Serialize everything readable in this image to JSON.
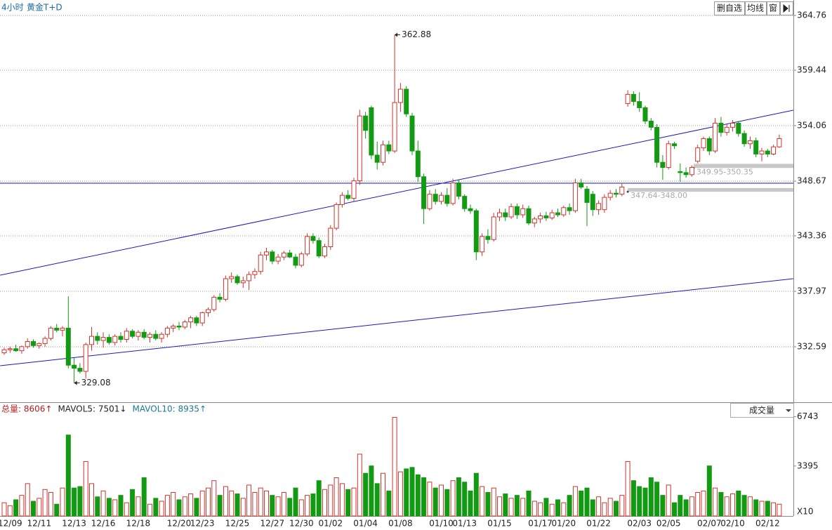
{
  "header": {
    "period": "4小时",
    "symbol": "黄金T+D",
    "buttons": [
      "删自选",
      "均线",
      "窗"
    ]
  },
  "chart_data": [
    {
      "type": "candlestick",
      "categories": [
        null,
        "12/09",
        null,
        null,
        null,
        null,
        "12/11",
        null,
        null,
        null,
        null,
        null,
        "12/13",
        null,
        null,
        null,
        null,
        "12/16",
        null,
        null,
        null,
        null,
        null,
        "12/18",
        null,
        null,
        null,
        null,
        null,
        null,
        "12/20",
        null,
        null,
        null,
        "12/23",
        null,
        null,
        null,
        null,
        null,
        "12/25",
        null,
        null,
        null,
        null,
        null,
        "12/27",
        null,
        null,
        null,
        null,
        "12/30",
        null,
        null,
        null,
        null,
        "01/02",
        null,
        null,
        null,
        null,
        null,
        "01/04",
        null,
        null,
        null,
        null,
        null,
        "01/08",
        null,
        null,
        null,
        null,
        null,
        null,
        "01/10",
        null,
        null,
        null,
        "01/13",
        null,
        null,
        null,
        null,
        null,
        "01/15",
        null,
        null,
        null,
        null,
        null,
        null,
        "01/17",
        null,
        null,
        null,
        "01/20",
        null,
        null,
        null,
        null,
        null,
        "01/22",
        null,
        null,
        null,
        null,
        null,
        null,
        "02/03",
        null,
        null,
        null,
        null,
        "02/05",
        null,
        null,
        null,
        null,
        null,
        null,
        "02/07",
        null,
        null,
        null,
        "02/10",
        null,
        null,
        null,
        null,
        null,
        "02/12",
        null,
        null
      ],
      "open": [
        332.0,
        332.3,
        332.4,
        332.2,
        332.6,
        333.1,
        332.7,
        332.9,
        333.4,
        334.4,
        334.2,
        334.4,
        330.8,
        330.5,
        330.2,
        332.8,
        333.6,
        333.2,
        333.5,
        333.0,
        333.6,
        333.3,
        334.1,
        333.6,
        334.0,
        333.5,
        333.8,
        333.4,
        333.8,
        334.4,
        334.6,
        334.5,
        335.0,
        335.4,
        334.9,
        335.9,
        336.2,
        337.4,
        337.2,
        339.2,
        339.4,
        338.8,
        339.0,
        339.6,
        339.9,
        341.5,
        341.8,
        340.9,
        341.3,
        341.7,
        341.3,
        340.5,
        341.6,
        343.3,
        342.9,
        341.4,
        342.3,
        344.1,
        346.4,
        347.3,
        347.0,
        348.7,
        355.0,
        355.8,
        351.2,
        350.5,
        352.2,
        351.6,
        356.3,
        357.6,
        355.0,
        351.6,
        349.1,
        346.0,
        347.4,
        346.7,
        347.3,
        346.5,
        348.5,
        347.2,
        346.0,
        345.8,
        341.8,
        343.3,
        343.0,
        345.2,
        345.6,
        345.2,
        346.2,
        345.4,
        346.0,
        344.6,
        345.0,
        345.3,
        345.1,
        345.6,
        345.4,
        346.1,
        345.8,
        348.5,
        347.9,
        347.4,
        345.9,
        345.9,
        347.1,
        347.5,
        347.4,
        356.2,
        357.1,
        356.4,
        355.8,
        354.5,
        353.9,
        350.5,
        350.0,
        352.3,
        349.6,
        349.5,
        349.3,
        350.6,
        351.9,
        352.8,
        351.6,
        354.3,
        353.4,
        353.9,
        354.3,
        353.3,
        352.3,
        352.6,
        351.3,
        351.6,
        351.3,
        352.0
      ],
      "high": [
        332.5,
        332.6,
        332.8,
        332.7,
        333.4,
        333.3,
        333.0,
        333.6,
        334.6,
        334.8,
        334.6,
        337.5,
        331.5,
        331.0,
        333.0,
        334.5,
        334.0,
        334.0,
        333.8,
        333.8,
        334.0,
        334.4,
        334.3,
        334.2,
        334.3,
        334.0,
        334.2,
        334.0,
        334.6,
        334.8,
        335.0,
        335.2,
        335.6,
        335.6,
        336.0,
        336.4,
        337.6,
        337.8,
        339.5,
        339.8,
        339.6,
        339.4,
        339.9,
        340.2,
        341.8,
        342.2,
        342.0,
        341.6,
        341.9,
        342.0,
        341.6,
        341.8,
        343.6,
        343.6,
        343.2,
        342.6,
        344.4,
        346.6,
        347.6,
        347.8,
        349.0,
        355.6,
        355.4,
        356.0,
        352.5,
        352.6,
        352.6,
        362.88,
        358.2,
        357.9,
        355.3,
        352.6,
        349.4,
        347.8,
        347.9,
        347.6,
        348.0,
        348.9,
        348.8,
        347.4,
        346.4,
        346.0,
        343.6,
        344.0,
        345.6,
        346.0,
        346.0,
        346.5,
        346.5,
        346.4,
        346.3,
        345.2,
        345.6,
        345.7,
        345.9,
        346.0,
        346.3,
        346.5,
        348.9,
        348.9,
        348.2,
        347.7,
        346.8,
        347.4,
        347.8,
        347.9,
        348.5,
        357.5,
        357.4,
        357.3,
        356.0,
        354.8,
        354.2,
        351.2,
        352.6,
        352.5,
        350.4,
        350.0,
        350.2,
        352.2,
        353.0,
        353.0,
        354.8,
        354.9,
        354.2,
        354.6,
        354.5,
        353.6,
        353.0,
        352.9,
        351.9,
        351.8,
        352.2,
        353.2
      ],
      "low": [
        331.8,
        332.0,
        332.1,
        331.9,
        332.4,
        332.5,
        332.4,
        332.6,
        333.2,
        334.0,
        333.6,
        330.5,
        329.08,
        330.0,
        329.5,
        332.2,
        332.8,
        332.5,
        332.8,
        332.7,
        333.0,
        333.0,
        333.4,
        333.2,
        333.3,
        333.0,
        333.2,
        333.0,
        333.5,
        334.0,
        334.2,
        334.3,
        334.4,
        334.6,
        334.6,
        335.5,
        336.0,
        336.9,
        337.0,
        338.8,
        338.6,
        338.3,
        338.1,
        339.2,
        339.6,
        341.0,
        340.6,
        340.6,
        341.0,
        341.2,
        340.2,
        340.3,
        341.4,
        342.6,
        341.2,
        341.2,
        342.0,
        343.9,
        346.1,
        346.8,
        346.7,
        348.3,
        352.8,
        350.8,
        349.8,
        350.2,
        351.3,
        351.4,
        355.4,
        354.9,
        351.2,
        348.6,
        344.5,
        345.8,
        346.4,
        346.4,
        346.2,
        346.3,
        346.9,
        345.7,
        345.5,
        341.0,
        341.4,
        342.6,
        342.8,
        344.8,
        344.8,
        345.0,
        345.0,
        345.1,
        344.4,
        344.2,
        344.6,
        344.8,
        344.9,
        345.2,
        345.2,
        345.4,
        345.6,
        347.9,
        344.3,
        345.3,
        345.4,
        345.6,
        346.8,
        347.1,
        347.2,
        355.9,
        356.0,
        355.4,
        354.2,
        353.6,
        350.0,
        348.8,
        349.8,
        351.8,
        348.6,
        349.0,
        349.1,
        350.4,
        351.6,
        351.2,
        351.4,
        353.0,
        353.1,
        353.5,
        353.0,
        352.0,
        351.8,
        351.0,
        350.6,
        351.0,
        351.2,
        351.9
      ],
      "close": [
        332.3,
        332.4,
        332.2,
        332.6,
        333.1,
        332.7,
        332.9,
        333.4,
        334.4,
        334.2,
        334.4,
        330.8,
        330.5,
        330.2,
        332.8,
        333.6,
        333.2,
        333.5,
        333.0,
        333.6,
        333.3,
        334.1,
        333.6,
        334.0,
        333.5,
        333.8,
        333.4,
        333.8,
        334.4,
        334.6,
        334.5,
        335.0,
        335.4,
        334.9,
        335.9,
        336.2,
        337.4,
        337.2,
        339.2,
        339.4,
        338.8,
        339.0,
        339.6,
        339.9,
        341.5,
        341.8,
        340.9,
        341.3,
        341.7,
        341.3,
        340.5,
        341.6,
        343.3,
        342.9,
        341.4,
        342.3,
        344.1,
        346.4,
        347.3,
        347.0,
        348.7,
        355.0,
        353.6,
        351.2,
        350.5,
        352.2,
        351.6,
        356.3,
        357.6,
        355.2,
        351.6,
        349.1,
        346.0,
        347.4,
        346.7,
        347.3,
        346.5,
        348.5,
        347.2,
        346.0,
        345.8,
        341.8,
        343.3,
        343.0,
        345.2,
        345.6,
        345.2,
        346.2,
        345.4,
        346.0,
        344.6,
        345.0,
        345.3,
        345.1,
        345.6,
        345.4,
        346.1,
        345.8,
        348.5,
        348.1,
        346.6,
        345.9,
        346.5,
        347.1,
        347.5,
        347.4,
        348.1,
        357.1,
        356.4,
        355.8,
        354.5,
        353.9,
        350.5,
        350.0,
        352.3,
        352.1,
        349.5,
        349.3,
        350.0,
        351.9,
        352.8,
        351.6,
        354.3,
        353.4,
        353.9,
        354.3,
        353.3,
        352.3,
        352.6,
        351.3,
        351.6,
        351.3,
        352.0,
        352.8
      ],
      "ylim": [
        327.27,
        366.26
      ],
      "yticks": [
        332.59,
        337.97,
        343.36,
        348.67,
        354.06,
        359.44,
        364.76
      ],
      "grid": true,
      "up_color": "#d0342c",
      "down_color": "#129a12",
      "hline": 348.47,
      "hline_color": "#1c1c8a",
      "trendline_color": "#1a1ac0",
      "trendlines": [
        {
          "from": [
            -0.7,
            339.54
          ],
          "to": [
            135.4,
            355.56
          ]
        },
        {
          "from": [
            -0.7,
            330.75
          ],
          "to": [
            135.4,
            339.2
          ]
        }
      ],
      "gaps": [
        {
          "start": 118.3,
          "low": 349.95,
          "high": 350.35,
          "label": "349.95-350.35"
        },
        {
          "start": 107.0,
          "low": 347.64,
          "high": 348.0,
          "label": "347.64-348.00"
        }
      ],
      "annotations": [
        {
          "index": 67,
          "value": 362.88
        },
        {
          "index": 12,
          "value": 329.08
        }
      ]
    },
    {
      "type": "volume",
      "legend": [
        {
          "text": "总量: 8606↑",
          "color": "#b02020"
        },
        {
          "text": "MAVOL5: 7501↓",
          "color": "#222222"
        },
        {
          "text": "MAVOL10: 8935↑",
          "color": "#1a7a9a"
        }
      ],
      "selector": "成交量",
      "values": [
        900,
        700,
        1100,
        1400,
        2200,
        1000,
        1200,
        1800,
        1600,
        800,
        1900,
        5500,
        1900,
        2000,
        3700,
        2200,
        1300,
        1700,
        1200,
        1100,
        1400,
        900,
        1800,
        1300,
        2600,
        800,
        1200,
        1000,
        1400,
        1600,
        1100,
        1300,
        1500,
        1200,
        1700,
        1900,
        2400,
        1400,
        2000,
        1700,
        1500,
        1200,
        2100,
        1600,
        1900,
        1700,
        1400,
        1300,
        1600,
        1200,
        1900,
        1100,
        1400,
        1500,
        2400,
        1800,
        2100,
        2600,
        2200,
        1800,
        1900,
        4200,
        2900,
        3400,
        2200,
        2900,
        1700,
        6700,
        3000,
        3200,
        3300,
        2800,
        2600,
        2300,
        1900,
        2100,
        1800,
        2400,
        2600,
        2300,
        1700,
        2900,
        2000,
        1600,
        1900,
        1300,
        1500,
        1200,
        1400,
        1200,
        1700,
        1000,
        900,
        1200,
        800,
        1100,
        900,
        1400,
        2000,
        1700,
        1900,
        1100,
        1300,
        900,
        1200,
        1000,
        1400,
        3700,
        2400,
        2000,
        1900,
        2600,
        2300,
        1400,
        2100,
        900,
        1400,
        1100,
        1300,
        1600,
        1700,
        3400,
        1900,
        1600,
        1300,
        1500,
        1700,
        1400,
        1300,
        1100,
        1000,
        1000,
        900,
        800
      ],
      "ylim": [
        0,
        7060
      ],
      "yticks": [
        3395,
        6743
      ],
      "unit_label": "X10"
    }
  ]
}
